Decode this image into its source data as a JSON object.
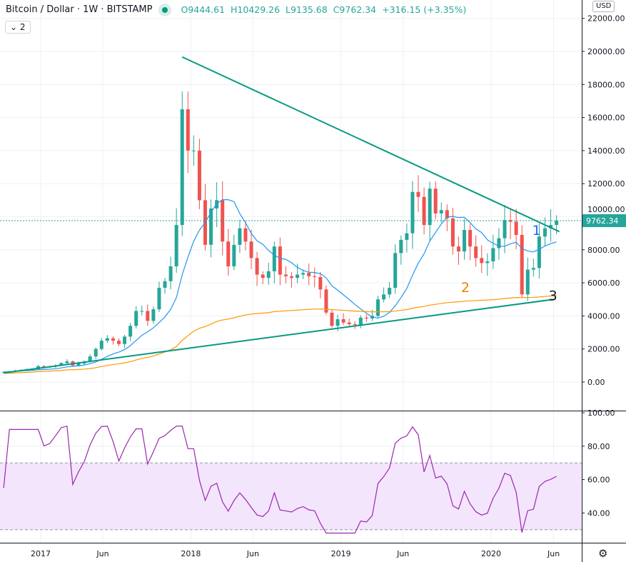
{
  "header": {
    "symbol": "Bitcoin / Dollar · 1W · BITSTAMP",
    "open": "O9444.61",
    "high": "H10429.26",
    "low": "L9135.68",
    "close": "C9762.34",
    "change": "+316.15 (+3.35%)",
    "collapse_label": "2",
    "currency": "USD"
  },
  "colors": {
    "up": "#26a69a",
    "down": "#ef5350",
    "ma_fast": "#2196f3",
    "ma_slow": "#ff9800",
    "trendline": "#089981",
    "rsi": "#9c27b0",
    "rsi_band": "#f3e5fc"
  },
  "chart_data": [
    {
      "type": "candlestick",
      "title": "Bitcoin / Dollar · 1W · BITSTAMP",
      "x_start": "2016-10-03",
      "x_step_days": 14,
      "closes": [
        610,
        650,
        700,
        740,
        760,
        780,
        960,
        900,
        920,
        1000,
        1150,
        1250,
        1000,
        1120,
        1240,
        1550,
        2000,
        2500,
        2650,
        2500,
        2300,
        2750,
        3400,
        4300,
        4300,
        3700,
        4400,
        5700,
        6100,
        7000,
        9500,
        16500,
        14000,
        14000,
        11000,
        8300,
        10500,
        11000,
        8500,
        7000,
        8300,
        9300,
        8500,
        7500,
        6500,
        6300,
        6700,
        8200,
        6500,
        6400,
        6300,
        6500,
        6600,
        6400,
        6350,
        5600,
        4200,
        3400,
        3800,
        3600,
        3500,
        3450,
        3900,
        3850,
        4000,
        5000,
        5300,
        5700,
        7800,
        8600,
        9000,
        11500,
        11200,
        9500,
        11700,
        10200,
        10400,
        9900,
        8200,
        7900,
        9200,
        8200,
        7500,
        7200,
        7300,
        8100,
        8700,
        9800,
        9700,
        8900,
        5300,
        6800,
        6900,
        8800,
        9300,
        9500,
        9762.34
      ],
      "last_price": "9762.34",
      "ylim": [
        0,
        22000
      ],
      "y_ticks": [
        "0.00",
        "2000.00",
        "4000.00",
        "6000.00",
        "8000.00",
        "10000.00",
        "12000.00",
        "14000.00",
        "16000.00",
        "18000.00",
        "20000.00",
        "22000.00"
      ],
      "x_ticks": [
        {
          "label": "2017",
          "date": "2017-01-01"
        },
        {
          "label": "Jun",
          "date": "2017-06-01"
        },
        {
          "label": "2018",
          "date": "2018-01-01"
        },
        {
          "label": "Jun",
          "date": "2018-06-01"
        },
        {
          "label": "2019",
          "date": "2019-01-01"
        },
        {
          "label": "Jun",
          "date": "2019-06-01"
        },
        {
          "label": "2020",
          "date": "2020-01-01"
        },
        {
          "label": "Jun",
          "date": "2020-06-01"
        }
      ],
      "trendlines": [
        {
          "from": [
            "2017-12-11",
            19666
          ],
          "to": [
            "2020-06-15",
            9100
          ]
        },
        {
          "from": [
            "2016-10-03",
            550
          ],
          "to": [
            "2020-06-01",
            5000
          ]
        }
      ],
      "annotations": [
        {
          "text": "1",
          "date": "2020-04-10",
          "price": 8900,
          "color": "#2962ff"
        },
        {
          "text": "2",
          "date": "2019-10-20",
          "price": 5450,
          "color": "#f57c00"
        },
        {
          "text": "3",
          "date": "2020-05-20",
          "price": 4950,
          "color": "#131722"
        }
      ]
    },
    {
      "type": "line",
      "ylim": [
        20,
        100
      ],
      "y_ticks": [
        "40.00",
        "60.00",
        "80.00",
        "100.00"
      ],
      "band": [
        30,
        70
      ]
    }
  ],
  "settings_icon": "gear-icon"
}
